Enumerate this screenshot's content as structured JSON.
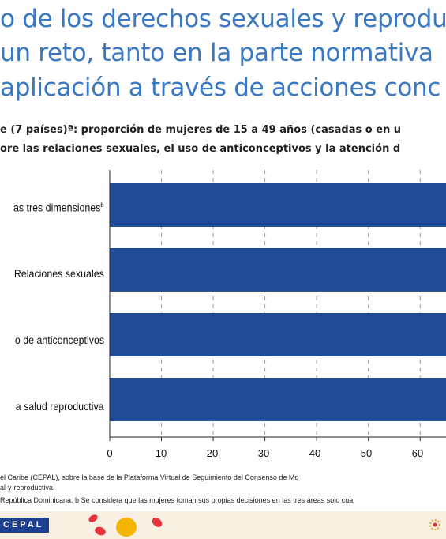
{
  "slide": {
    "title_lines": [
      "o de los derechos sexuales y reprodu",
      "un reto, tanto en la parte normativa",
      "aplicación a través de acciones conc"
    ],
    "subtitle_lines": [
      "e (7 países)ª: proporción de mujeres de 15 a 49 años (casadas o en u",
      "ore las relaciones sexuales, el uso de anticonceptivos y la atención d"
    ],
    "notes": [
      "el Caribe (CEPAL), sobre la base de la Plataforma Virtual de Seguimiento del Consenso de Mo",
      "al-y-reproductiva.",
      "República Dominicana. b Se considera que las mujeres toman sus propias decisiones en las tres áreas solo cua"
    ],
    "logo_text": "CEPAL"
  },
  "colors": {
    "title": "#3a78c2",
    "bar": "#1e4a97",
    "footer_band": "#f7f0e2",
    "logo_bg": "#1c3f8f"
  },
  "chart_data": {
    "type": "bar",
    "orientation": "horizontal",
    "categories": [
      "as tres dimensiones",
      "Relaciones sexuales",
      "o de anticonceptivos",
      "a salud reproductiva"
    ],
    "category_superscripts": [
      "b",
      "",
      "",
      ""
    ],
    "values": [
      null,
      null,
      null,
      null
    ],
    "x_ticks": [
      "0",
      "10",
      "20",
      "30",
      "40",
      "50",
      "60"
    ],
    "xlim": [
      0,
      65
    ],
    "grid": true,
    "note": "bars extend beyond the visible right edge; values not readable"
  }
}
